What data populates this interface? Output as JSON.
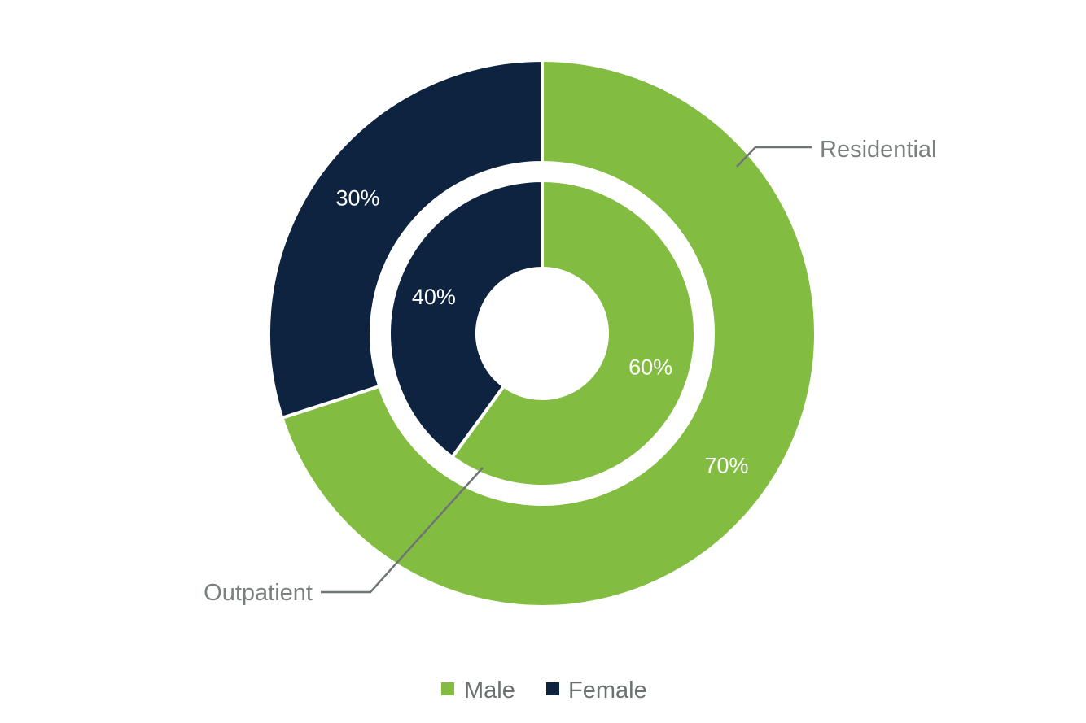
{
  "chart_data": {
    "type": "pie",
    "variant": "nested-donut",
    "categories": [
      "Male",
      "Female"
    ],
    "series": [
      {
        "name": "Residential",
        "ring": "outer",
        "values": [
          70,
          30
        ],
        "labels": [
          "70%",
          "30%"
        ]
      },
      {
        "name": "Outpatient",
        "ring": "inner",
        "values": [
          60,
          40
        ],
        "labels": [
          "60%",
          "40%"
        ]
      }
    ],
    "legend": {
      "position": "bottom",
      "items": [
        {
          "label": "Male",
          "color": "#82bd41"
        },
        {
          "label": "Female",
          "color": "#0e2340"
        }
      ]
    }
  },
  "colors": {
    "male": "#82bd41",
    "female": "#0e2340",
    "label_text": "#7a7f80",
    "leader_line": "#6f7476"
  }
}
